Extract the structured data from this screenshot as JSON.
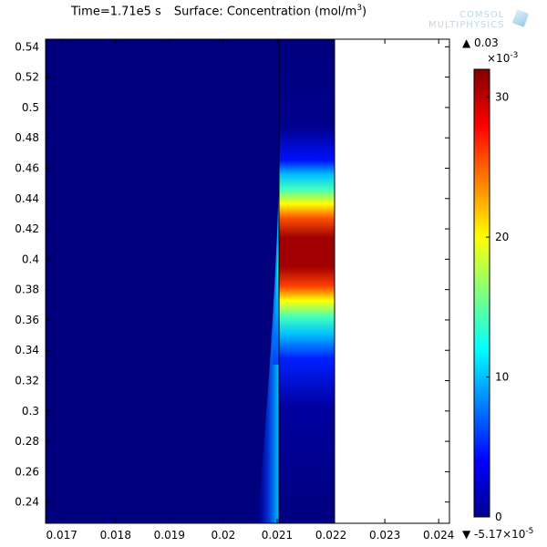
{
  "header": {
    "time_label": "Time=1.71e5 s",
    "surface_label": "Surface: Concentration (mol/m",
    "surface_unit_exp": "3",
    "surface_label_end": ")"
  },
  "logo": {
    "line1": "COMSOL",
    "line2": "MULTIPHYSICS"
  },
  "colorbar": {
    "max_label": "▲ 0.03",
    "scale_label": "×10",
    "scale_exp": "-3",
    "min_label": "▼ -5.17×10",
    "min_exp": "-5",
    "ticks": [
      0,
      10,
      20,
      30
    ],
    "range": [
      0,
      32
    ],
    "colormap": "jet"
  },
  "chart_data": {
    "type": "heatmap",
    "title": "Time=1.71e5 s   Surface: Concentration (mol/m^3)",
    "xlabel": "",
    "ylabel": "",
    "xlim": [
      0.0167,
      0.0242
    ],
    "ylim": [
      0.226,
      0.545
    ],
    "x_ticks": [
      "0.017",
      "0.018",
      "0.019",
      "0.02",
      "0.021",
      "0.022",
      "0.023",
      "0.024"
    ],
    "y_ticks": [
      "0.24",
      "0.26",
      "0.28",
      "0.3",
      "0.32",
      "0.34",
      "0.36",
      "0.38",
      "0.4",
      "0.42",
      "0.44",
      "0.46",
      "0.48",
      "0.5",
      "0.52",
      "0.54"
    ],
    "domain_x_range": [
      0.0167,
      0.022
    ],
    "interface_x": 0.021,
    "peak_y": 0.39,
    "value_range": [
      -5.17e-05,
      0.03
    ],
    "colorbar_unit": "1e-3 mol/m^3"
  }
}
